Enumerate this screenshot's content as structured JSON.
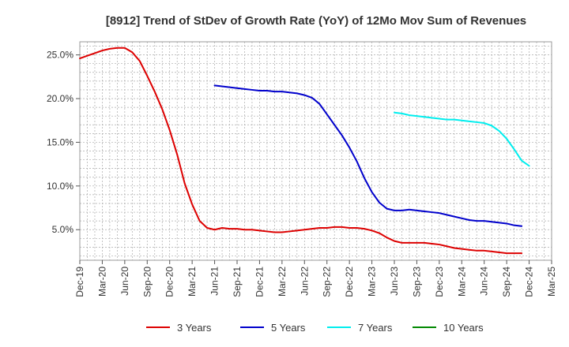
{
  "chart_data": {
    "type": "line",
    "title": "[8912]  Trend of StDev of Growth Rate (YoY) of 12Mo Mov Sum of Revenues",
    "xlabel": "",
    "ylabel": "",
    "ylim": [
      1.5,
      26.5
    ],
    "y_ticks": [
      5.0,
      10.0,
      15.0,
      20.0,
      25.0
    ],
    "y_tick_labels": [
      "5.0%",
      "10.0%",
      "15.0%",
      "20.0%",
      "25.0%"
    ],
    "x_tick_labels": [
      "Dec-19",
      "Mar-20",
      "Jun-20",
      "Sep-20",
      "Dec-20",
      "Mar-21",
      "Jun-21",
      "Sep-21",
      "Dec-21",
      "Mar-22",
      "Jun-22",
      "Sep-22",
      "Dec-22",
      "Mar-23",
      "Jun-23",
      "Sep-23",
      "Dec-23",
      "Mar-24",
      "Jun-24",
      "Sep-24",
      "Dec-24",
      "Mar-25"
    ],
    "grid": true,
    "legend_position": "bottom",
    "series": [
      {
        "name": "3 Years",
        "color": "#dd0000",
        "start_month_index": 0,
        "values": [
          24.6,
          24.9,
          25.2,
          25.5,
          25.7,
          25.8,
          25.8,
          25.3,
          24.3,
          22.6,
          20.8,
          18.8,
          16.4,
          13.6,
          10.3,
          7.9,
          6.0,
          5.2,
          5.0,
          5.2,
          5.1,
          5.1,
          5.0,
          5.0,
          4.9,
          4.8,
          4.7,
          4.7,
          4.8,
          4.9,
          5.0,
          5.1,
          5.2,
          5.2,
          5.3,
          5.3,
          5.2,
          5.2,
          5.1,
          4.9,
          4.6,
          4.1,
          3.7,
          3.5,
          3.5,
          3.5,
          3.5,
          3.4,
          3.3,
          3.1,
          2.9,
          2.8,
          2.7,
          2.6,
          2.6,
          2.5,
          2.4,
          2.3,
          2.3,
          2.3
        ]
      },
      {
        "name": "5 Years",
        "color": "#0000cc",
        "start_month_index": 18,
        "values": [
          21.5,
          21.4,
          21.3,
          21.2,
          21.1,
          21.0,
          20.9,
          20.9,
          20.8,
          20.8,
          20.7,
          20.6,
          20.4,
          20.1,
          19.4,
          18.2,
          17.0,
          15.8,
          14.4,
          12.8,
          10.9,
          9.3,
          8.1,
          7.4,
          7.2,
          7.2,
          7.3,
          7.2,
          7.1,
          7.0,
          6.9,
          6.7,
          6.5,
          6.3,
          6.1,
          6.0,
          6.0,
          5.9,
          5.8,
          5.7,
          5.5,
          5.4
        ]
      },
      {
        "name": "7 Years",
        "color": "#00eeee",
        "start_month_index": 42,
        "values": [
          18.4,
          18.3,
          18.1,
          18.0,
          17.9,
          17.8,
          17.7,
          17.6,
          17.6,
          17.5,
          17.4,
          17.3,
          17.2,
          16.9,
          16.3,
          15.4,
          14.2,
          12.9,
          12.3
        ]
      },
      {
        "name": "10 Years",
        "color": "#008800",
        "start_month_index": 0,
        "values": []
      }
    ]
  }
}
